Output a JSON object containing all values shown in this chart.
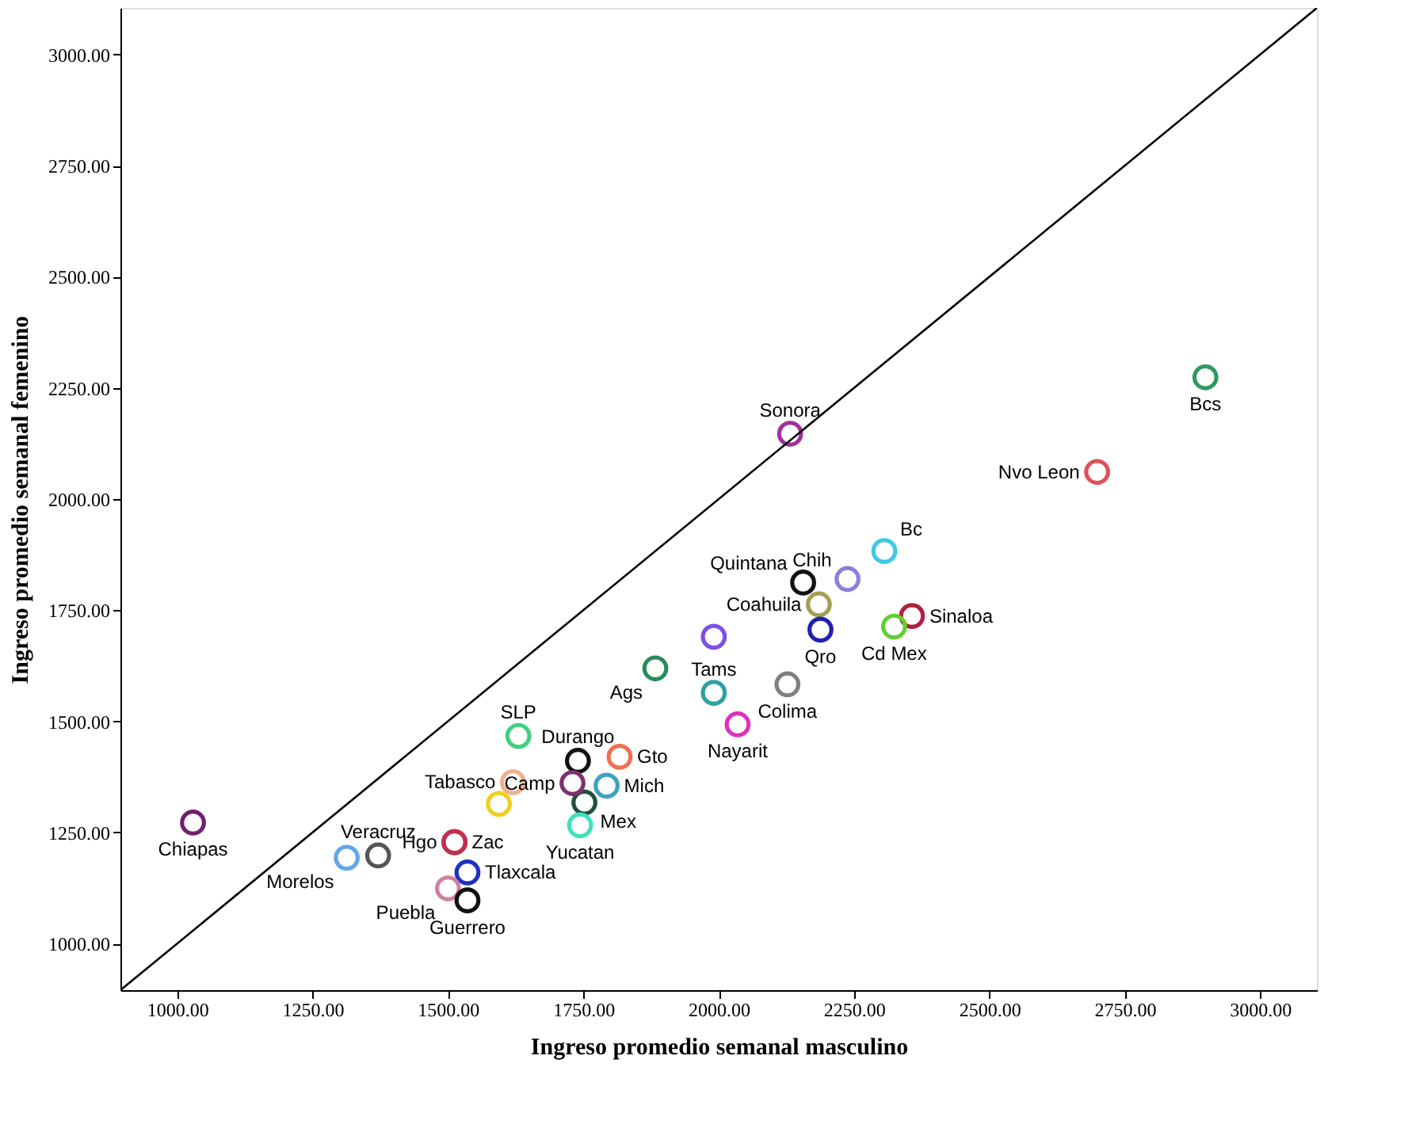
{
  "chart_data": {
    "type": "scatter",
    "xlabel": "Ingreso promedio semanal masculino",
    "ylabel": "Ingreso promedio semanal femenino",
    "xlim": [
      895,
      3105
    ],
    "ylim": [
      895,
      3105
    ],
    "xticks": [
      {
        "value": 1000,
        "label": "1000.00"
      },
      {
        "value": 1250,
        "label": "1250.00"
      },
      {
        "value": 1500,
        "label": "1500.00"
      },
      {
        "value": 1750,
        "label": "1750.00"
      },
      {
        "value": 2000,
        "label": "2000.00"
      },
      {
        "value": 2250,
        "label": "2250.00"
      },
      {
        "value": 2500,
        "label": "2500.00"
      },
      {
        "value": 2750,
        "label": "2750.00"
      },
      {
        "value": 3000,
        "label": "3000.00"
      }
    ],
    "yticks": [
      {
        "value": 1000,
        "label": "1000.00"
      },
      {
        "value": 1250,
        "label": "1250.00"
      },
      {
        "value": 1500,
        "label": "1500.00"
      },
      {
        "value": 1750,
        "label": "1750.00"
      },
      {
        "value": 2000,
        "label": "2000.00"
      },
      {
        "value": 2250,
        "label": "2250.00"
      },
      {
        "value": 2500,
        "label": "2500.00"
      },
      {
        "value": 2750,
        "label": "2750.00"
      },
      {
        "value": 3000,
        "label": "3000.00"
      }
    ],
    "grid": false,
    "marker": "circle",
    "series": [
      {
        "x": [
          2899,
          2699,
          2132,
          2306,
          2238,
          2156,
          2185,
          2188,
          2357,
          2324,
          1991,
          1991,
          1883,
          2127,
          2035,
          1740,
          1817,
          1793,
          1752,
          1730,
          1630,
          1620,
          1594,
          1744,
          1512,
          1512,
          1371,
          1313,
          1029,
          1536,
          1500,
          1536
        ],
        "values": [
          2274,
          2061,
          2147,
          1883,
          1820,
          1812,
          1763,
          1706,
          1737,
          1713,
          1690,
          1564,
          1619,
          1583,
          1493,
          1411,
          1420,
          1355,
          1317,
          1361,
          1467,
          1363,
          1314,
          1266,
          1228,
          1228,
          1198,
          1193,
          1272,
          1160,
          1124,
          1097
        ],
        "colors": [
          "#2e9a5e",
          "#e0505a",
          "#a0309a",
          "#40c8e8",
          "#8a80e0",
          "#111111",
          "#a0a050",
          "#2020b0",
          "#b02040",
          "#60d030",
          "#8050e0",
          "#30a0a0",
          "#2a8a5a",
          "#808080",
          "#e030c0",
          "#111111",
          "#f07050",
          "#40a0c0",
          "#205040",
          "#803070",
          "#40d080",
          "#f0b090",
          "#f0d020",
          "#40e0c0",
          "#901030",
          "#c03050",
          "#555555",
          "#60a8e8",
          "#702070",
          "#2030c0",
          "#d080a0",
          "#111111"
        ],
        "value_labels": [
          "Bcs",
          "Nvo Leon",
          "Sonora",
          "Bc",
          "Chih",
          "Quintana",
          "Coahuila",
          "Qro",
          "Sinaloa",
          "Cd Mex",
          null,
          "Tams",
          "Ags",
          "Colima",
          "Nayarit",
          "Durango",
          "Gto",
          "Mich",
          "Mex",
          "Camp",
          "SLP",
          "Tabasco",
          null,
          "Yucatan",
          "Zac",
          "Hgo",
          "Veracruz",
          "Morelos",
          "Chiapas",
          "Tlaxcala",
          "Puebla",
          "Guerrero"
        ]
      },
      {
        "type": "line",
        "marker": "none",
        "color": "#000000",
        "x": [
          895,
          3105
        ],
        "values": [
          895,
          3105
        ]
      }
    ]
  }
}
